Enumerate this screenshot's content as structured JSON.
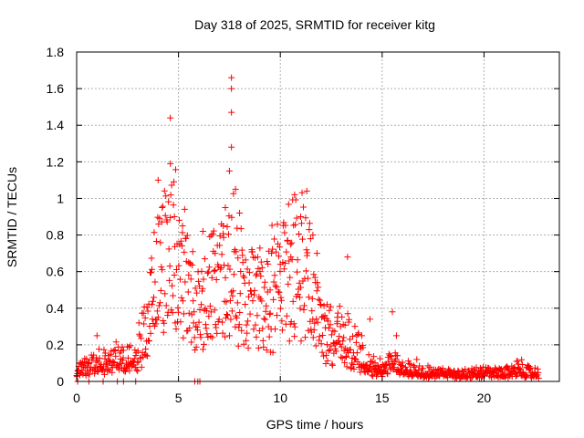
{
  "chart_data": {
    "type": "scatter",
    "title": "Day 318 of 2025, SRMTID for receiver kitg",
    "xlabel": "GPS time / hours",
    "ylabel": "SRMTID / TECUs",
    "xlim": [
      0,
      23.7
    ],
    "ylim": [
      0,
      1.8
    ],
    "xticks": [
      0,
      5,
      10,
      15,
      20
    ],
    "xtick_labels": [
      "0",
      "5",
      "10",
      "15",
      "20"
    ],
    "yticks": [
      0,
      0.2,
      0.4,
      0.6,
      0.8,
      1,
      1.2,
      1.4,
      1.6,
      1.8
    ],
    "ytick_labels": [
      "0",
      "0.2",
      "0.4",
      "0.6",
      "0.8",
      "1",
      "1.2",
      "1.4",
      "1.6",
      "1.8"
    ],
    "grid": true,
    "marker": "+",
    "series": [
      {
        "name": "SRMTID",
        "color": "#ff0000",
        "envelope": [
          [
            0.0,
            0.05
          ],
          [
            0.5,
            0.07
          ],
          [
            1.0,
            0.12
          ],
          [
            1.5,
            0.1
          ],
          [
            2.0,
            0.11
          ],
          [
            2.5,
            0.12
          ],
          [
            3.0,
            0.14
          ],
          [
            3.5,
            0.3
          ],
          [
            4.0,
            0.55
          ],
          [
            4.5,
            0.7
          ],
          [
            5.0,
            0.6
          ],
          [
            5.5,
            0.45
          ],
          [
            6.0,
            0.35
          ],
          [
            6.5,
            0.45
          ],
          [
            7.0,
            0.5
          ],
          [
            7.5,
            0.6
          ],
          [
            8.0,
            0.45
          ],
          [
            8.5,
            0.4
          ],
          [
            9.0,
            0.38
          ],
          [
            9.5,
            0.45
          ],
          [
            10.0,
            0.45
          ],
          [
            10.5,
            0.55
          ],
          [
            11.0,
            0.6
          ],
          [
            11.5,
            0.45
          ],
          [
            12.0,
            0.3
          ],
          [
            12.5,
            0.22
          ],
          [
            13.0,
            0.25
          ],
          [
            13.5,
            0.18
          ],
          [
            14.0,
            0.12
          ],
          [
            14.5,
            0.08
          ],
          [
            15.0,
            0.07
          ],
          [
            15.5,
            0.1
          ],
          [
            16.0,
            0.07
          ],
          [
            16.5,
            0.06
          ],
          [
            17.0,
            0.05
          ],
          [
            18.0,
            0.04
          ],
          [
            19.0,
            0.04
          ],
          [
            20.0,
            0.045
          ],
          [
            21.0,
            0.04
          ],
          [
            21.7,
            0.07
          ],
          [
            22.0,
            0.05
          ],
          [
            22.7,
            0.04
          ]
        ],
        "peaks": [
          [
            0.05,
            0.06
          ],
          [
            1.0,
            0.25
          ],
          [
            1.4,
            0.14
          ],
          [
            2.3,
            0.17
          ],
          [
            3.7,
            0.42
          ],
          [
            4.0,
            1.1
          ],
          [
            4.2,
            0.95
          ],
          [
            4.6,
            1.44
          ],
          [
            4.6,
            1.19
          ],
          [
            4.8,
            0.9
          ],
          [
            5.2,
            0.85
          ],
          [
            5.5,
            0.65
          ],
          [
            6.2,
            0.82
          ],
          [
            6.8,
            0.7
          ],
          [
            7.2,
            0.85
          ],
          [
            7.3,
            0.95
          ],
          [
            7.5,
            1.15
          ],
          [
            7.6,
            1.66
          ],
          [
            7.6,
            1.6
          ],
          [
            7.6,
            1.47
          ],
          [
            7.6,
            1.28
          ],
          [
            7.8,
            1.05
          ],
          [
            8.0,
            0.92
          ],
          [
            8.6,
            0.72
          ],
          [
            9.0,
            0.6
          ],
          [
            9.5,
            0.5
          ],
          [
            10.0,
            0.64
          ],
          [
            10.5,
            0.75
          ],
          [
            10.7,
            1.02
          ],
          [
            11.0,
            0.9
          ],
          [
            11.3,
            1.04
          ],
          [
            11.6,
            0.8
          ],
          [
            11.8,
            0.7
          ],
          [
            12.3,
            0.42
          ],
          [
            12.8,
            0.35
          ],
          [
            13.3,
            0.68
          ],
          [
            14.0,
            0.25
          ],
          [
            14.4,
            0.34
          ],
          [
            15.5,
            0.38
          ],
          [
            15.7,
            0.25
          ],
          [
            16.7,
            0.12
          ],
          [
            21.6,
            0.11
          ]
        ],
        "zero_points": [
          0.05,
          0.6,
          1.3,
          2.0,
          2.3,
          2.9,
          5.8,
          5.95,
          6.05
        ]
      }
    ]
  }
}
